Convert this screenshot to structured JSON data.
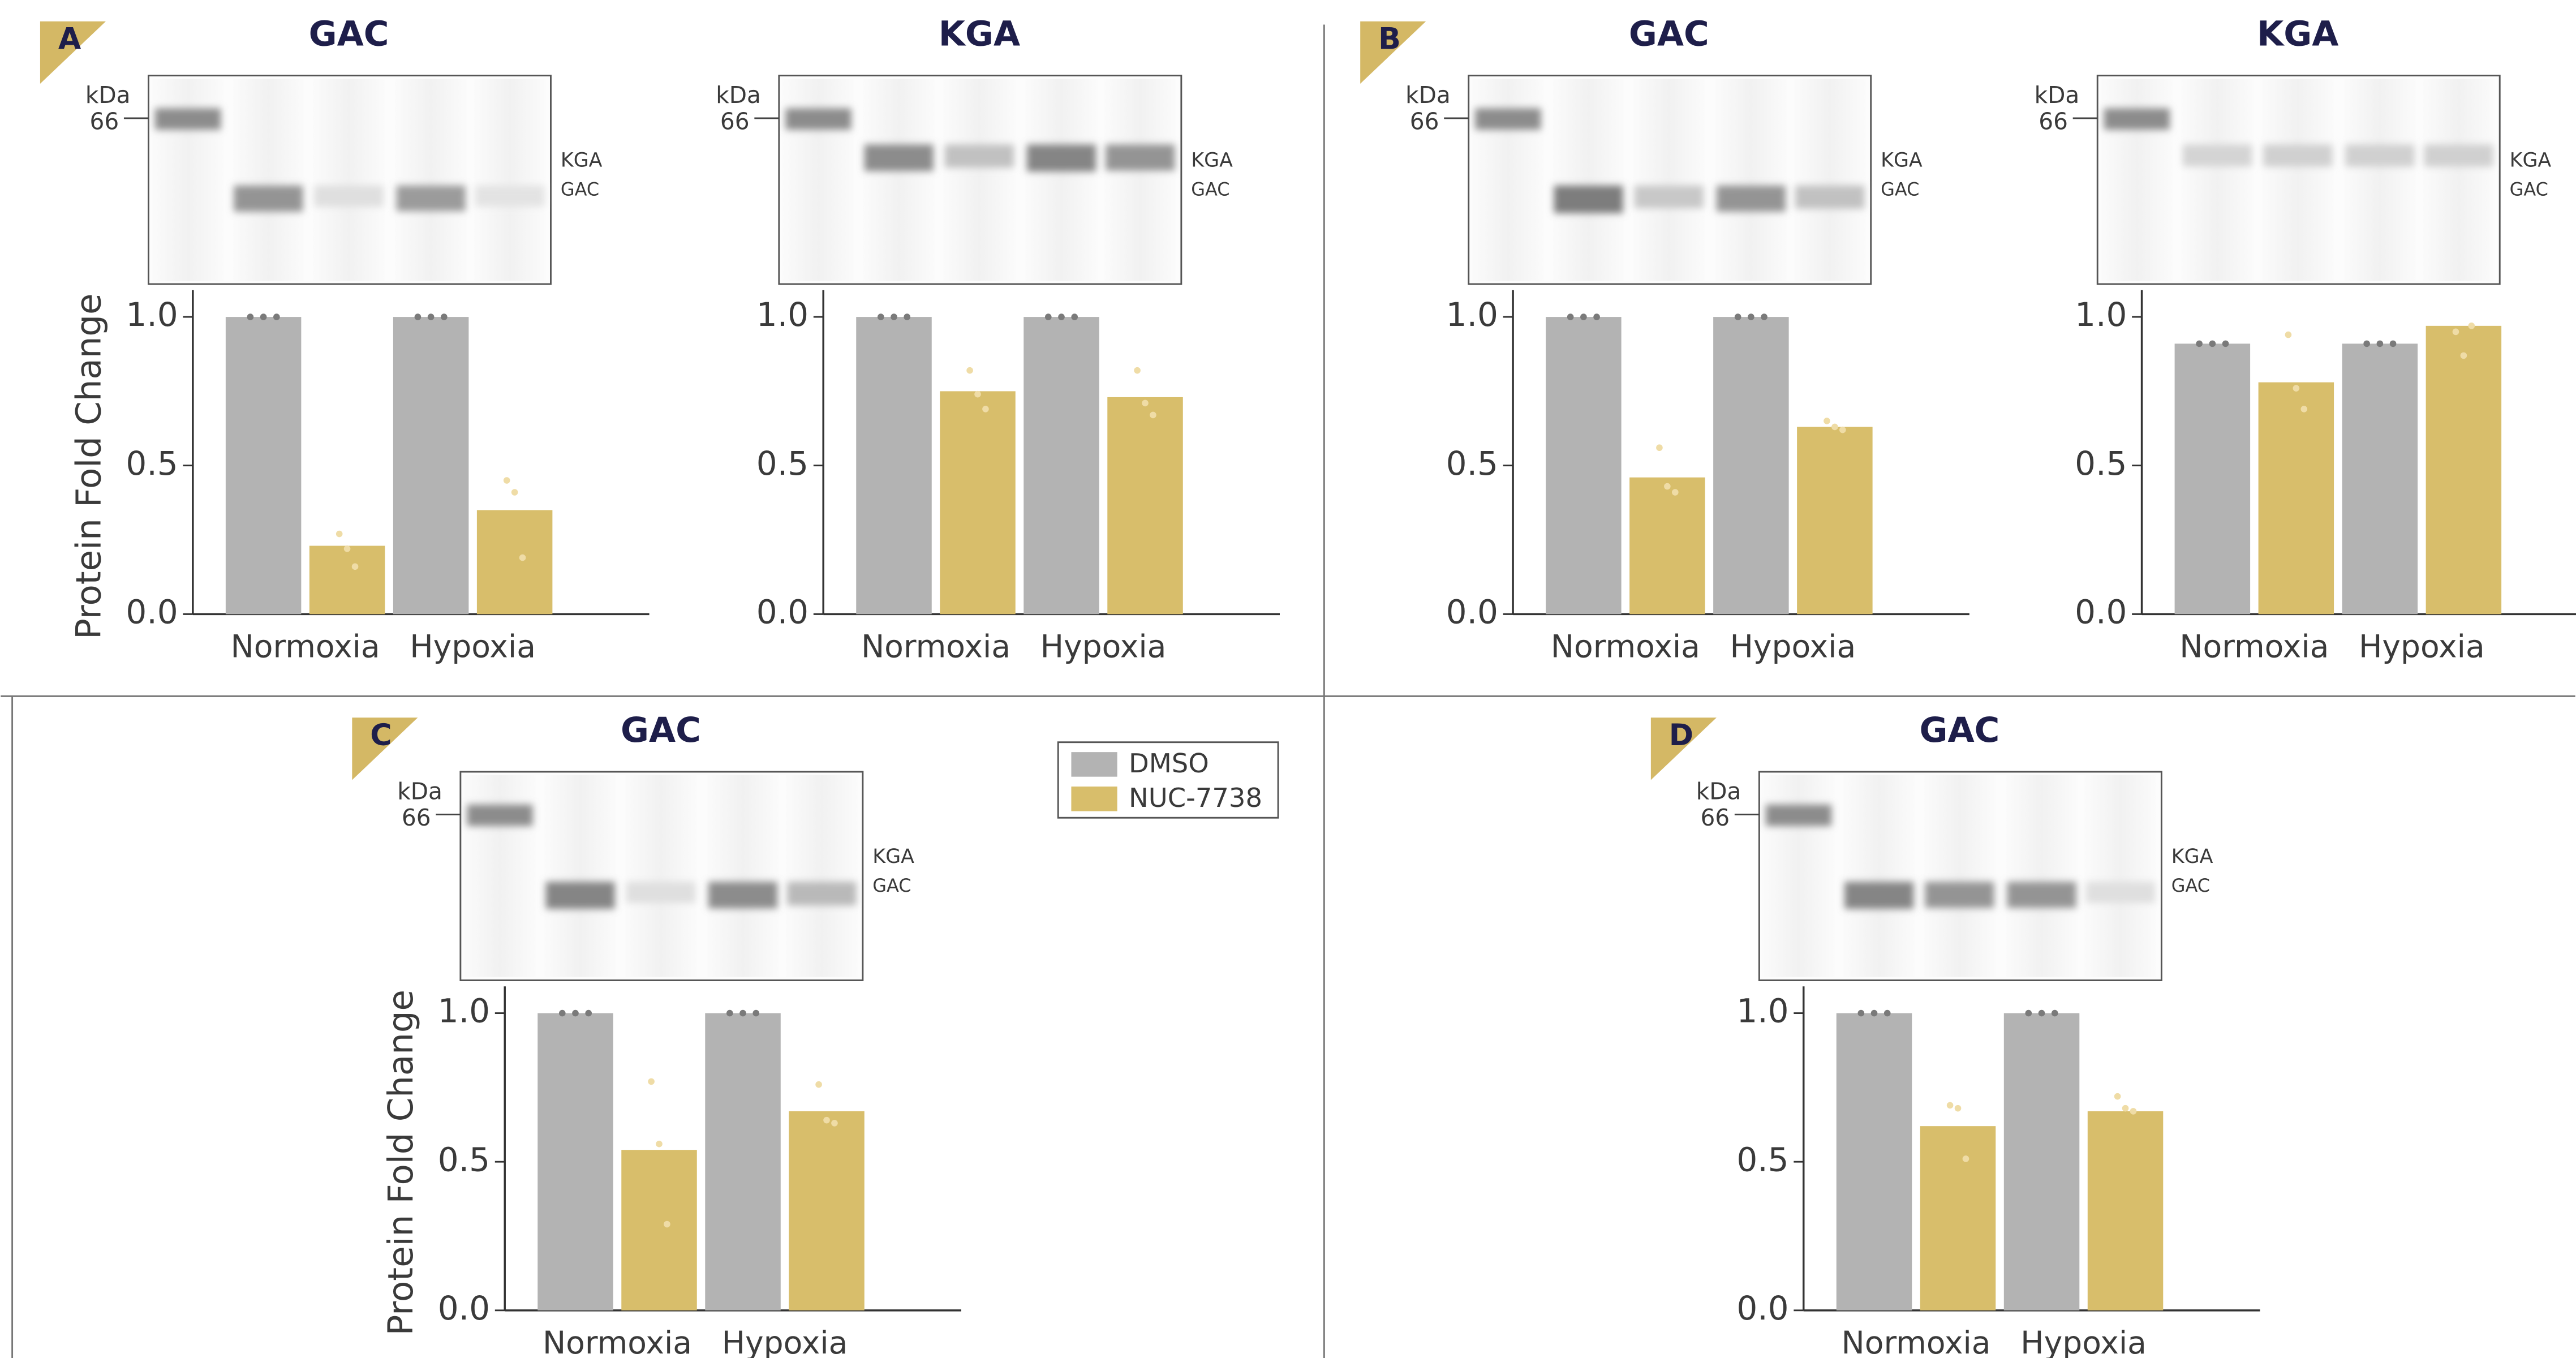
{
  "chart_data": [
    {
      "type": "bar",
      "panel": "A",
      "title": "GAC",
      "ylabel": "Protein Fold Change",
      "categories": [
        "Normoxia",
        "Hypoxia"
      ],
      "series": [
        {
          "color": "#b3b3b3",
          "values": [
            1.0,
            1.0
          ],
          "replicates": [
            [
              1.0,
              1.0,
              1.0
            ],
            [
              1.0,
              1.0,
              1.0
            ]
          ]
        },
        {
          "color": "#d8be6b",
          "values": [
            0.23,
            0.35
          ],
          "replicates": [
            [
              0.27,
              0.22,
              0.16
            ],
            [
              0.45,
              0.41,
              0.19
            ]
          ]
        }
      ],
      "ylim": [
        0,
        1.09
      ],
      "yticks": [
        {
          "value": 0,
          "label": "0.0"
        },
        {
          "value": 0.5,
          "label": "0.5"
        },
        {
          "value": 1,
          "label": "1.0"
        }
      ],
      "blot": {
        "unit": "kDa",
        "marker": 66,
        "bands": [
          "KGA",
          "GAC"
        ]
      }
    },
    {
      "type": "bar",
      "title": "KGA",
      "categories": [
        "Normoxia",
        "Hypoxia"
      ],
      "series": [
        {
          "color": "#b3b3b3",
          "values": [
            1.0,
            1.0
          ],
          "replicates": [
            [
              1.0,
              1.0,
              1.0
            ],
            [
              1.0,
              1.0,
              1.0
            ]
          ]
        },
        {
          "color": "#d8be6b",
          "values": [
            0.75,
            0.73
          ],
          "replicates": [
            [
              0.82,
              0.74,
              0.69
            ],
            [
              0.82,
              0.71,
              0.67
            ]
          ]
        }
      ],
      "ylim": [
        0,
        1.09
      ],
      "yticks": [
        {
          "value": 0,
          "label": "0.0"
        },
        {
          "value": 0.5,
          "label": "0.5"
        },
        {
          "value": 1,
          "label": "1.0"
        }
      ],
      "blot": {
        "unit": "kDa",
        "marker": 66,
        "bands": [
          "KGA",
          "GAC"
        ]
      }
    },
    {
      "type": "bar",
      "panel": "B",
      "title": "GAC",
      "categories": [
        "Normoxia",
        "Hypoxia"
      ],
      "series": [
        {
          "color": "#b3b3b3",
          "values": [
            1.0,
            1.0
          ],
          "replicates": [
            [
              1.0,
              1.0,
              1.0
            ],
            [
              1.0,
              1.0,
              1.0
            ]
          ]
        },
        {
          "color": "#d8be6b",
          "values": [
            0.46,
            0.63
          ],
          "replicates": [
            [
              0.56,
              0.43,
              0.41
            ],
            [
              0.65,
              0.63,
              0.62
            ]
          ]
        }
      ],
      "ylim": [
        0,
        1.09
      ],
      "yticks": [
        {
          "value": 0,
          "label": "0.0"
        },
        {
          "value": 0.5,
          "label": "0.5"
        },
        {
          "value": 1,
          "label": "1.0"
        }
      ],
      "blot": {
        "unit": "kDa",
        "marker": 66,
        "bands": [
          "KGA",
          "GAC"
        ]
      }
    },
    {
      "type": "bar",
      "title": "KGA",
      "categories": [
        "Normoxia",
        "Hypoxia"
      ],
      "series": [
        {
          "color": "#b3b3b3",
          "values": [
            0.91,
            0.91
          ],
          "replicates": [
            [
              0.91,
              0.91,
              0.91
            ],
            [
              0.91,
              0.91,
              0.91
            ]
          ]
        },
        {
          "color": "#d8be6b",
          "values": [
            0.78,
            0.97
          ],
          "replicates": [
            [
              0.94,
              0.76,
              0.69
            ],
            [
              0.95,
              0.87,
              0.97
            ]
          ]
        }
      ],
      "ylim": [
        0,
        1.09
      ],
      "yticks": [
        {
          "value": 0,
          "label": "0.0"
        },
        {
          "value": 0.5,
          "label": "0.5"
        },
        {
          "value": 1,
          "label": "1.0"
        }
      ],
      "blot": {
        "unit": "kDa",
        "marker": 66,
        "bands": [
          "KGA",
          "GAC"
        ]
      }
    },
    {
      "type": "bar",
      "panel": "C",
      "title": "GAC",
      "ylabel": "Protein Fold Change",
      "categories": [
        "Normoxia",
        "Hypoxia"
      ],
      "series": [
        {
          "name": "DMSO",
          "color": "#b3b3b3",
          "values": [
            1.0,
            1.0
          ],
          "replicates": [
            [
              1.0,
              1.0,
              1.0
            ],
            [
              1.0,
              1.0,
              1.0
            ]
          ]
        },
        {
          "name": "NUC-7738",
          "color": "#d8be6b",
          "values": [
            0.54,
            0.67
          ],
          "replicates": [
            [
              0.77,
              0.56,
              0.29
            ],
            [
              0.76,
              0.64,
              0.63
            ]
          ]
        }
      ],
      "ylim": [
        0,
        1.09
      ],
      "yticks": [
        {
          "value": 0,
          "label": "0.0"
        },
        {
          "value": 0.5,
          "label": "0.5"
        },
        {
          "value": 1,
          "label": "1.0"
        }
      ],
      "legend": "top-right",
      "blot": {
        "unit": "kDa",
        "marker": 66,
        "bands": [
          "KGA",
          "GAC"
        ]
      }
    },
    {
      "type": "bar",
      "panel": "D",
      "title": "GAC",
      "categories": [
        "Normoxia",
        "Hypoxia"
      ],
      "series": [
        {
          "color": "#b3b3b3",
          "values": [
            1.0,
            1.0
          ],
          "replicates": [
            [
              1.0,
              1.0,
              1.0
            ],
            [
              1.0,
              1.0,
              1.0
            ]
          ]
        },
        {
          "color": "#d8be6b",
          "values": [
            0.62,
            0.67
          ],
          "replicates": [
            [
              0.69,
              0.68,
              0.51
            ],
            [
              0.72,
              0.68,
              0.67
            ]
          ]
        }
      ],
      "ylim": [
        0,
        1.09
      ],
      "yticks": [
        {
          "value": 0,
          "label": "0.0"
        },
        {
          "value": 0.5,
          "label": "0.5"
        },
        {
          "value": 1,
          "label": "1.0"
        }
      ],
      "blot": {
        "unit": "kDa",
        "marker": 66,
        "bands": [
          "KGA",
          "GAC"
        ]
      }
    }
  ]
}
